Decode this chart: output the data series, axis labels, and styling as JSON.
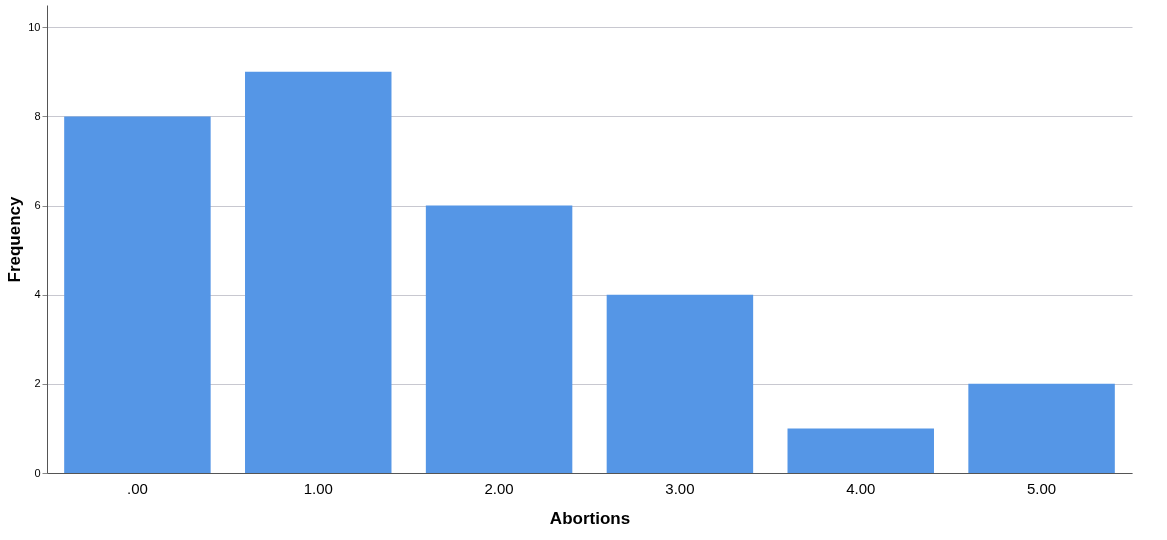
{
  "chart_data": {
    "type": "bar",
    "xlabel": "Abortions",
    "ylabel": "Frequency",
    "categories": [
      ".00",
      "1.00",
      "2.00",
      "3.00",
      "4.00",
      "5.00"
    ],
    "values": [
      8,
      9,
      6,
      4,
      1,
      2
    ],
    "color": "#5596e6",
    "ylim": [
      0,
      10.5
    ],
    "yticks": [
      0,
      2,
      4,
      6,
      8,
      10
    ],
    "grid": "y"
  }
}
